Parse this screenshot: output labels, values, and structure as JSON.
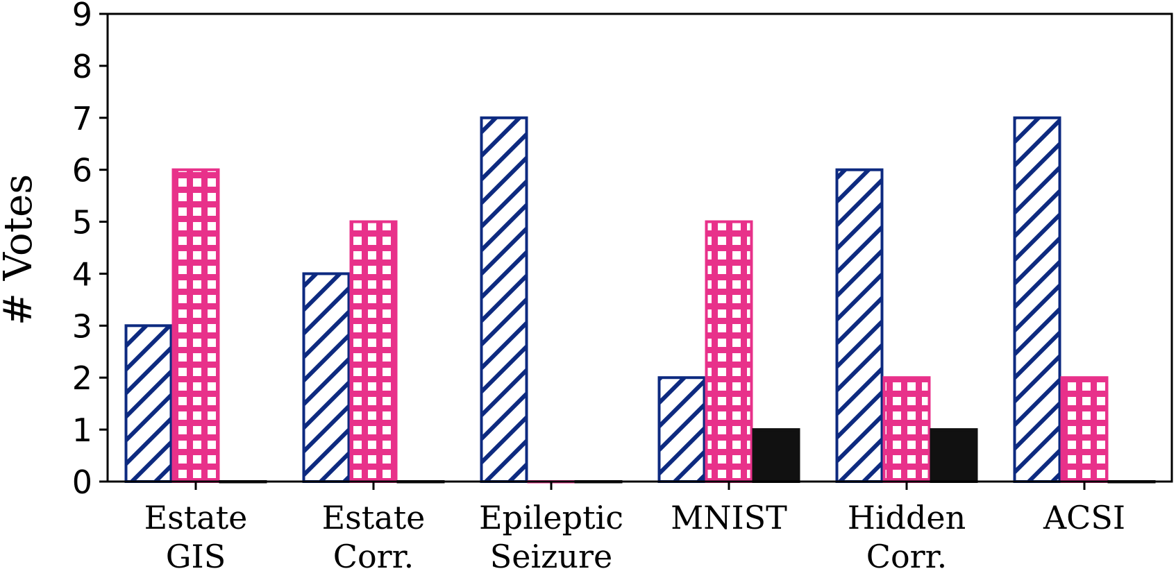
{
  "chart_data": {
    "type": "bar",
    "title": "",
    "xlabel": "",
    "ylabel": "# Votes",
    "ylim": [
      0,
      9
    ],
    "yticks": [
      0,
      1,
      2,
      3,
      4,
      5,
      6,
      7,
      8,
      9
    ],
    "categories": [
      [
        "Estate",
        "GIS"
      ],
      [
        "Estate",
        "Corr."
      ],
      [
        "Epileptic",
        "Seizure"
      ],
      [
        "MNIST"
      ],
      [
        "Hidden",
        "Corr."
      ],
      [
        "ACSI"
      ]
    ],
    "series": [
      {
        "name": "series-1",
        "pattern": "diagonal",
        "color": "#0d2a80",
        "values": [
          3,
          4,
          7,
          2,
          6,
          7
        ]
      },
      {
        "name": "series-2",
        "pattern": "grid",
        "color": "#e8318a",
        "values": [
          6,
          5,
          0,
          5,
          2,
          2
        ]
      },
      {
        "name": "series-3",
        "pattern": "solid",
        "color": "#111111",
        "values": [
          0,
          0,
          0,
          1,
          1,
          0
        ]
      }
    ]
  }
}
